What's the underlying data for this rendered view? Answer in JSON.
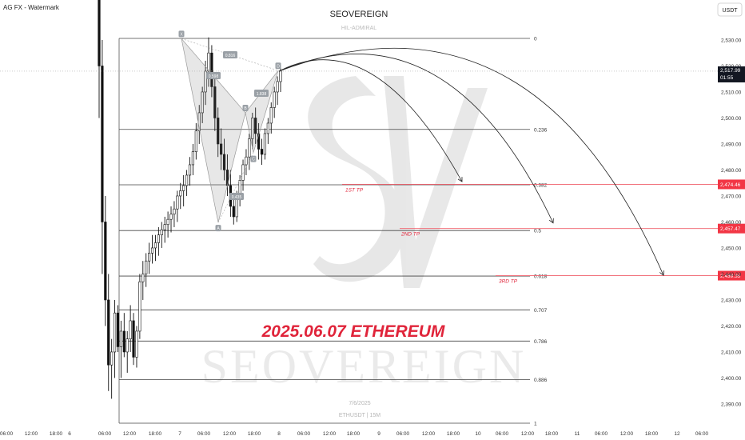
{
  "header": {
    "title": "AG FX - Watermark",
    "currency_button": "USDT"
  },
  "chart_data": {
    "type": "candlestick",
    "title": "SEOVEREIGN",
    "subtitle": "HIL-ADMIRAL",
    "annotation_main": "2025.06.07 ETHEREUM",
    "watermark_word": "SEOVEREIGN",
    "footer_date": "7/6/2025",
    "footer_symbol": "ETHUSDT | 15M",
    "ylim": [
      2383,
      2545
    ],
    "y_ticks": [
      2530,
      2520,
      2510,
      2500,
      2490,
      2480,
      2470,
      2460,
      2450,
      2440,
      2430,
      2420,
      2410,
      2400,
      2390
    ],
    "y_tick_labels": [
      "2,530.00",
      "2,520.00",
      "2,510.00",
      "2,500.00",
      "2,490.00",
      "2,480.00",
      "2,470.00",
      "2,460.00",
      "2,450.00",
      "2,440.00",
      "2,430.00",
      "2,420.00",
      "2,410.00",
      "2,400.00",
      "2,390.00"
    ],
    "x_ticks": [
      "06:00",
      "12:00",
      "18:00",
      "6",
      "06:00",
      "12:00",
      "18:00",
      "7",
      "06:00",
      "12:00",
      "18:00",
      "8",
      "06:00",
      "12:00",
      "18:00",
      "9",
      "06:00",
      "12:00",
      "18:00",
      "10",
      "06:00",
      "12:00",
      "18:00",
      "11",
      "06:00",
      "12:00",
      "18:00",
      "12",
      "06:00"
    ],
    "current_price": {
      "value": 2517.99,
      "label": "2,517.99",
      "countdown": "01:55"
    },
    "fib_levels": [
      {
        "ratio": "0",
        "price": 2530.6
      },
      {
        "ratio": "0.236",
        "price": 2495.6
      },
      {
        "ratio": "0.382",
        "price": 2474.3
      },
      {
        "ratio": "0.5",
        "price": 2456.7
      },
      {
        "ratio": "0.618",
        "price": 2439.2
      },
      {
        "ratio": "0.707",
        "price": 2426.2
      },
      {
        "ratio": "0.786",
        "price": 2414.2
      },
      {
        "ratio": "0.886",
        "price": 2399.4
      },
      {
        "ratio": "1",
        "price": 2382.6
      }
    ],
    "targets": [
      {
        "label": "1ST TP",
        "price": 2474.46,
        "price_label": "2,474.46"
      },
      {
        "label": "2ND TP",
        "price": 2457.47,
        "price_label": "2,457.47"
      },
      {
        "label": "3RD TP",
        "price": 2439.35,
        "price_label": "2,439.35"
      }
    ],
    "pattern_points": [
      {
        "label": "X",
        "price": 2530.5
      },
      {
        "label": "A",
        "price": 2459.8
      },
      {
        "label": "B",
        "price": 2502.0
      },
      {
        "label": "C",
        "price": 2486.7
      },
      {
        "label": "D",
        "price": 2518.2
      }
    ],
    "pattern_ratios": [
      "0.816",
      "0.598",
      "1.838",
      "0.435"
    ],
    "candles": [
      [
        2548,
        2553,
        2500,
        2520
      ],
      [
        2520,
        2530,
        2440,
        2460
      ],
      [
        2460,
        2470,
        2420,
        2430
      ],
      [
        2430,
        2440,
        2395,
        2405
      ],
      [
        2405,
        2415,
        2392,
        2410
      ],
      [
        2410,
        2430,
        2400,
        2425
      ],
      [
        2425,
        2428,
        2410,
        2412
      ],
      [
        2412,
        2422,
        2400,
        2418
      ],
      [
        2418,
        2425,
        2408,
        2410
      ],
      [
        2410,
        2418,
        2402,
        2415
      ],
      [
        2415,
        2428,
        2410,
        2422
      ],
      [
        2422,
        2425,
        2405,
        2408
      ],
      [
        2408,
        2420,
        2404,
        2418
      ],
      [
        2418,
        2440,
        2415,
        2437
      ],
      [
        2437,
        2445,
        2430,
        2440
      ],
      [
        2440,
        2448,
        2435,
        2445
      ],
      [
        2445,
        2452,
        2440,
        2448
      ],
      [
        2448,
        2455,
        2444,
        2450
      ],
      [
        2450,
        2455,
        2445,
        2452
      ],
      [
        2452,
        2458,
        2447,
        2455
      ],
      [
        2455,
        2460,
        2450,
        2457
      ],
      [
        2457,
        2462,
        2452,
        2459
      ],
      [
        2459,
        2464,
        2454,
        2461
      ],
      [
        2461,
        2466,
        2456,
        2463
      ],
      [
        2463,
        2468,
        2458,
        2465
      ],
      [
        2465,
        2472,
        2460,
        2470
      ],
      [
        2470,
        2475,
        2465,
        2472
      ],
      [
        2472,
        2478,
        2466,
        2474
      ],
      [
        2474,
        2480,
        2470,
        2478
      ],
      [
        2478,
        2485,
        2474,
        2482
      ],
      [
        2482,
        2490,
        2478,
        2487
      ],
      [
        2487,
        2498,
        2484,
        2495
      ],
      [
        2495,
        2505,
        2490,
        2502
      ],
      [
        2502,
        2512,
        2498,
        2510
      ],
      [
        2510,
        2522,
        2505,
        2518
      ],
      [
        2518,
        2531,
        2512,
        2525
      ],
      [
        2525,
        2528,
        2508,
        2512
      ],
      [
        2512,
        2516,
        2495,
        2500
      ],
      [
        2500,
        2504,
        2485,
        2490
      ],
      [
        2490,
        2496,
        2480,
        2486
      ],
      [
        2486,
        2492,
        2476,
        2480
      ],
      [
        2480,
        2486,
        2470,
        2474
      ],
      [
        2474,
        2480,
        2462,
        2466
      ],
      [
        2466,
        2470,
        2459,
        2462
      ],
      [
        2462,
        2472,
        2460,
        2470
      ],
      [
        2470,
        2478,
        2466,
        2476
      ],
      [
        2476,
        2484,
        2472,
        2482
      ],
      [
        2482,
        2488,
        2478,
        2485
      ],
      [
        2485,
        2494,
        2480,
        2492
      ],
      [
        2492,
        2502,
        2488,
        2500
      ],
      [
        2500,
        2504,
        2490,
        2494
      ],
      [
        2494,
        2498,
        2484,
        2488
      ],
      [
        2488,
        2492,
        2482,
        2486
      ],
      [
        2486,
        2496,
        2484,
        2494
      ],
      [
        2494,
        2500,
        2490,
        2498
      ],
      [
        2498,
        2506,
        2494,
        2504
      ],
      [
        2504,
        2512,
        2500,
        2510
      ],
      [
        2510,
        2516,
        2505,
        2514
      ],
      [
        2514,
        2521,
        2510,
        2518
      ]
    ]
  }
}
